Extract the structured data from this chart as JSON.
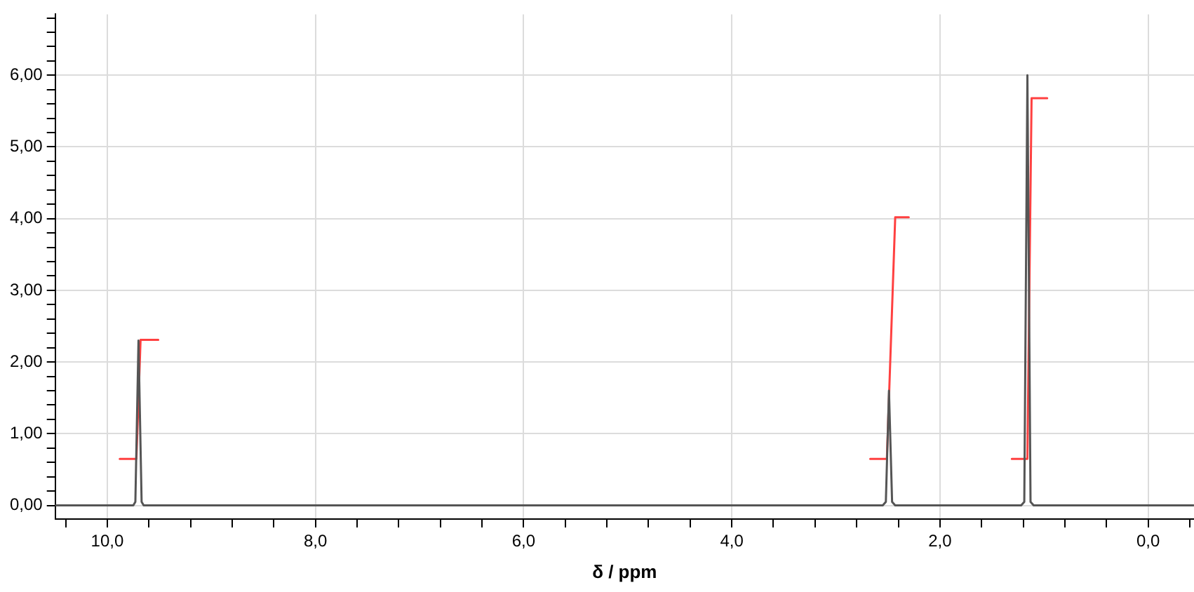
{
  "chart_data": {
    "type": "line",
    "xlabel": "δ / ppm",
    "xlim": [
      10.5,
      -0.44
    ],
    "ylim": [
      -0.19,
      6.85
    ],
    "xticks": [
      {
        "value": 10.4,
        "label": null
      },
      {
        "value": 10,
        "label": "10,0"
      },
      {
        "value": 9.6,
        "label": null
      },
      {
        "value": 9.2,
        "label": null
      },
      {
        "value": 8.8,
        "label": null
      },
      {
        "value": 8.4,
        "label": null
      },
      {
        "value": 8,
        "label": "8,0"
      },
      {
        "value": 7.6,
        "label": null
      },
      {
        "value": 7.2,
        "label": null
      },
      {
        "value": 6.8,
        "label": null
      },
      {
        "value": 6.4,
        "label": null
      },
      {
        "value": 6,
        "label": "6,0"
      },
      {
        "value": 5.6,
        "label": null
      },
      {
        "value": 5.2,
        "label": null
      },
      {
        "value": 4.8,
        "label": null
      },
      {
        "value": 4.4,
        "label": null
      },
      {
        "value": 4,
        "label": "4,0"
      },
      {
        "value": 3.6,
        "label": null
      },
      {
        "value": 3.2,
        "label": null
      },
      {
        "value": 2.8,
        "label": null
      },
      {
        "value": 2.4,
        "label": null
      },
      {
        "value": 2,
        "label": "2,0"
      },
      {
        "value": 1.6,
        "label": null
      },
      {
        "value": 1.2,
        "label": null
      },
      {
        "value": 0.8,
        "label": null
      },
      {
        "value": 0.4,
        "label": null
      },
      {
        "value": 0,
        "label": "0,0"
      },
      {
        "value": -0.4,
        "label": null
      }
    ],
    "yticks": [
      {
        "value": 0,
        "label": "0,00"
      },
      {
        "value": 0.2,
        "label": null
      },
      {
        "value": 0.4,
        "label": null
      },
      {
        "value": 0.6,
        "label": null
      },
      {
        "value": 0.8,
        "label": null
      },
      {
        "value": 1,
        "label": "1,00"
      },
      {
        "value": 1.2,
        "label": null
      },
      {
        "value": 1.4,
        "label": null
      },
      {
        "value": 1.6,
        "label": null
      },
      {
        "value": 1.8,
        "label": null
      },
      {
        "value": 2,
        "label": "2,00"
      },
      {
        "value": 2.2,
        "label": null
      },
      {
        "value": 2.4,
        "label": null
      },
      {
        "value": 2.6,
        "label": null
      },
      {
        "value": 2.8,
        "label": null
      },
      {
        "value": 3,
        "label": "3,00"
      },
      {
        "value": 3.2,
        "label": null
      },
      {
        "value": 3.4,
        "label": null
      },
      {
        "value": 3.6,
        "label": null
      },
      {
        "value": 3.8,
        "label": null
      },
      {
        "value": 4,
        "label": "4,00"
      },
      {
        "value": 4.2,
        "label": null
      },
      {
        "value": 4.4,
        "label": null
      },
      {
        "value": 4.6,
        "label": null
      },
      {
        "value": 4.8,
        "label": null
      },
      {
        "value": 5,
        "label": "5,00"
      },
      {
        "value": 5.2,
        "label": null
      },
      {
        "value": 5.4,
        "label": null
      },
      {
        "value": 5.6,
        "label": null
      },
      {
        "value": 5.8,
        "label": null
      },
      {
        "value": 6,
        "label": "6,00"
      },
      {
        "value": 6.2,
        "label": null
      },
      {
        "value": 6.4,
        "label": null
      },
      {
        "value": 6.6,
        "label": null
      },
      {
        "value": 6.8,
        "label": null
      }
    ],
    "grid": true,
    "legend": false,
    "marker": "none",
    "line_style": "solid",
    "series": [
      {
        "color": "#555555",
        "x": [
          10.5,
          9.75,
          9.73,
          9.7,
          9.67,
          9.65,
          2.55,
          2.52,
          2.49,
          2.46,
          2.43,
          1.22,
          1.19,
          1.16,
          1.13,
          1.1,
          -0.44
        ],
        "values": [
          0,
          0,
          0.05,
          2.3,
          0.05,
          0,
          0,
          0.05,
          1.6,
          0.05,
          0,
          0,
          0.05,
          6.0,
          0.05,
          0,
          0
        ]
      },
      {
        "color": "#ff4040",
        "x": [
          9.88,
          9.72,
          9.68,
          9.51,
          5,
          2.67,
          2.51,
          2.43,
          2.3,
          1.8,
          1.31,
          1.16,
          1.12,
          0.97
        ],
        "values": [
          0.65,
          0.65,
          2.31,
          2.31,
          null,
          0.65,
          0.65,
          4.02,
          4.02,
          null,
          0.65,
          0.65,
          5.68,
          5.68
        ]
      }
    ]
  }
}
